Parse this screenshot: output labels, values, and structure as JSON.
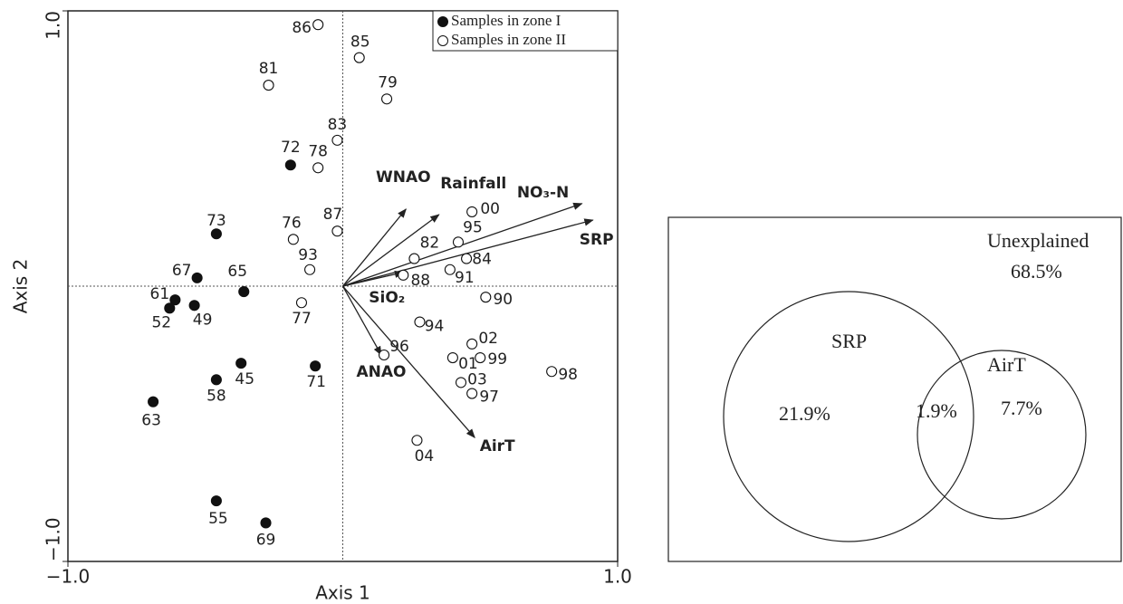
{
  "chart_data": [
    {
      "type": "biplot",
      "xlabel": "Axis 1",
      "ylabel": "Axis 2",
      "xlim": [
        -1.0,
        1.0
      ],
      "ylim": [
        -1.0,
        1.0
      ],
      "xticks": [
        {
          "value": -1.0,
          "label": "−1.0"
        },
        {
          "value": 1.0,
          "label": "1.0"
        }
      ],
      "yticks": [
        {
          "value": -1.0,
          "label": "−1.0"
        },
        {
          "value": 1.0,
          "label": "1.0"
        }
      ],
      "legend": "upper right",
      "series": [
        {
          "name": "Samples in zone I",
          "color": "#111111",
          "filled": true,
          "labels": [
            "72",
            "73",
            "67",
            "65",
            "61",
            "52",
            "49",
            "45",
            "58",
            "71",
            "63",
            "55",
            "69"
          ],
          "x": [
            -0.19,
            -0.46,
            -0.53,
            -0.36,
            -0.61,
            -0.63,
            -0.54,
            -0.37,
            -0.46,
            -0.1,
            -0.69,
            -0.46,
            -0.28
          ],
          "y": [
            0.44,
            0.19,
            0.03,
            -0.02,
            -0.05,
            -0.08,
            -0.07,
            -0.28,
            -0.34,
            -0.29,
            -0.42,
            -0.78,
            -0.86
          ]
        },
        {
          "name": "Samples in zone II",
          "color": "#111111",
          "filled": false,
          "labels": [
            "86",
            "85",
            "81",
            "79",
            "83",
            "78",
            "87",
            "76",
            "93",
            "77",
            "00",
            "95",
            "82",
            "84",
            "91",
            "88",
            "90",
            "94",
            "96",
            "02",
            "01",
            "99",
            "03",
            "97",
            "98",
            "04"
          ],
          "x": [
            -0.09,
            0.06,
            -0.27,
            0.16,
            -0.02,
            -0.09,
            -0.02,
            -0.18,
            -0.12,
            -0.15,
            0.47,
            0.42,
            0.26,
            0.45,
            0.39,
            0.22,
            0.52,
            0.28,
            0.15,
            0.47,
            0.4,
            0.5,
            0.43,
            0.47,
            0.76,
            0.27
          ],
          "y": [
            0.95,
            0.83,
            0.73,
            0.68,
            0.53,
            0.43,
            0.2,
            0.17,
            0.06,
            -0.06,
            0.27,
            0.16,
            0.1,
            0.1,
            0.06,
            0.04,
            -0.04,
            -0.13,
            -0.25,
            -0.21,
            -0.26,
            -0.26,
            -0.35,
            -0.39,
            -0.31,
            -0.56
          ]
        }
      ],
      "arrows": [
        {
          "name": "WNAO",
          "x": 0.23,
          "y": 0.28
        },
        {
          "name": "Rainfall",
          "x": 0.35,
          "y": 0.26
        },
        {
          "name": "NO₃-N",
          "x": 0.87,
          "y": 0.3
        },
        {
          "name": "SRP",
          "x": 0.91,
          "y": 0.24
        },
        {
          "name": "SiO₂",
          "x": 0.22,
          "y": 0.05
        },
        {
          "name": "ANAO",
          "x": 0.14,
          "y": -0.25
        },
        {
          "name": "AirT",
          "x": 0.48,
          "y": -0.55
        }
      ]
    },
    {
      "type": "venn",
      "unexplained": {
        "name": "Unexplained",
        "value": 68.5,
        "value_label": "68.5%"
      },
      "sets": [
        {
          "name": "SRP",
          "value": 21.9,
          "value_label": "21.9%"
        },
        {
          "name": "AirT",
          "value": 7.7,
          "value_label": "7.7%"
        }
      ],
      "overlap": {
        "value": 1.9,
        "value_label": "1.9%"
      }
    }
  ]
}
